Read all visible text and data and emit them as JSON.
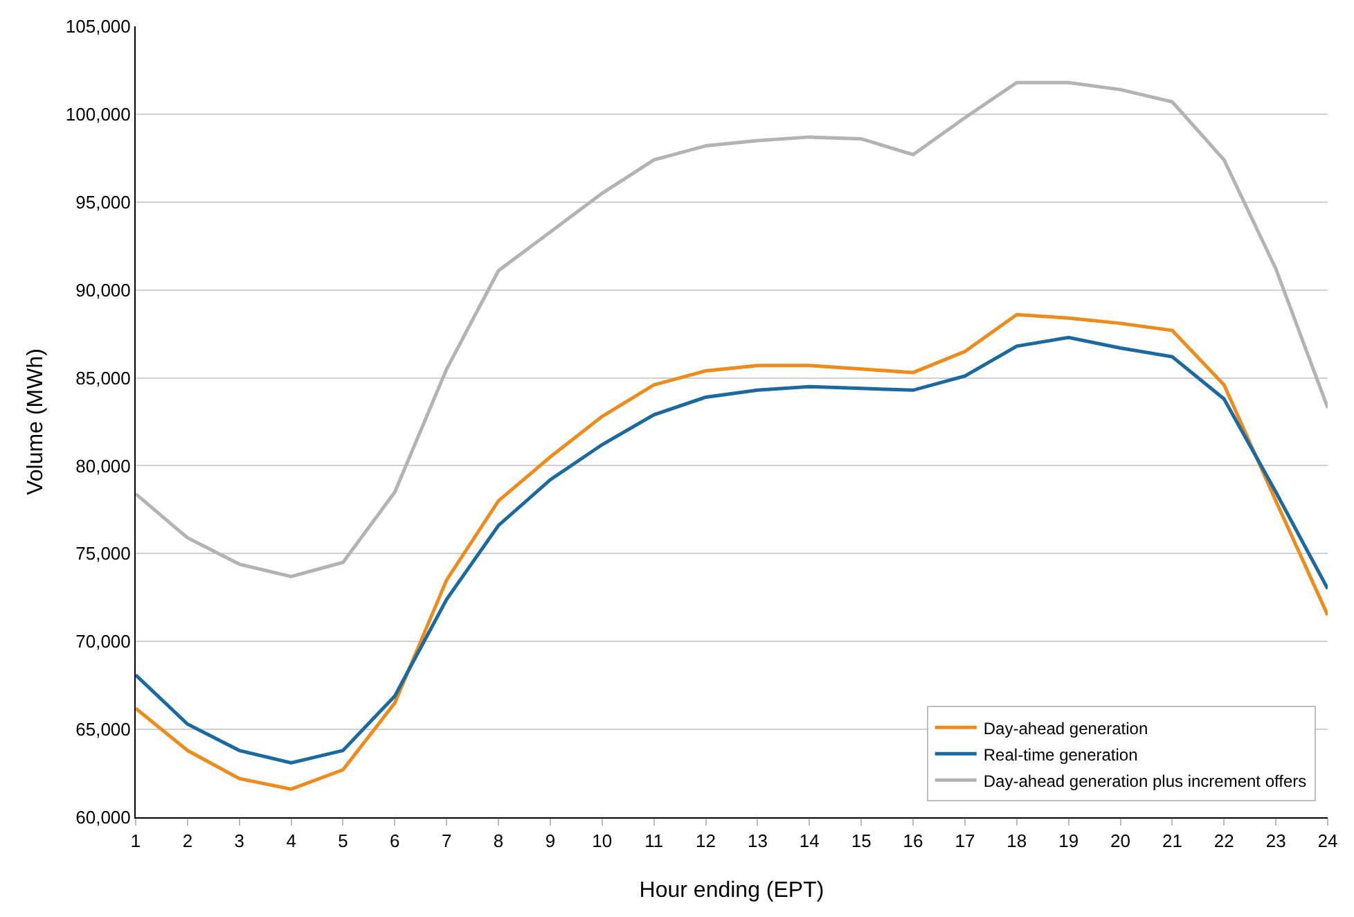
{
  "chart_data": {
    "type": "line",
    "xlabel": "Hour ending (EPT)",
    "ylabel": "Volume (MWh)",
    "x": [
      1,
      2,
      3,
      4,
      5,
      6,
      7,
      8,
      9,
      10,
      11,
      12,
      13,
      14,
      15,
      16,
      17,
      18,
      19,
      20,
      21,
      22,
      23,
      24
    ],
    "series": [
      {
        "name": "Day-ahead generation",
        "color": "#ed8b1c",
        "values": [
          66200,
          63800,
          62200,
          61600,
          62700,
          66500,
          73500,
          78000,
          80500,
          82800,
          84600,
          85400,
          85700,
          85700,
          85500,
          85300,
          86500,
          88600,
          88400,
          88100,
          87700,
          84600,
          78000,
          71500
        ]
      },
      {
        "name": "Real-time generation",
        "color": "#1a6aa0",
        "values": [
          68100,
          65300,
          63800,
          63100,
          63800,
          66900,
          72400,
          76600,
          79200,
          81200,
          82900,
          83900,
          84300,
          84500,
          84400,
          84300,
          85100,
          86800,
          87300,
          86700,
          86200,
          83800,
          78500,
          73000
        ]
      },
      {
        "name": "Day-ahead generation plus increment offers",
        "color": "#b3b3b3",
        "values": [
          78400,
          75900,
          74400,
          73700,
          74500,
          78500,
          85500,
          91100,
          93300,
          95500,
          97400,
          98200,
          98500,
          98700,
          98600,
          97700,
          99800,
          101800,
          101800,
          101400,
          100700,
          97400,
          91200,
          83300
        ]
      }
    ],
    "xlim": [
      1,
      24
    ],
    "xticks": [
      1,
      2,
      3,
      4,
      5,
      6,
      7,
      8,
      9,
      10,
      11,
      12,
      13,
      14,
      15,
      16,
      17,
      18,
      19,
      20,
      21,
      22,
      23,
      24
    ],
    "ylim": [
      60000,
      105000
    ],
    "yticks": [
      {
        "value": 60000,
        "label": "60,000"
      },
      {
        "value": 65000,
        "label": "65,000"
      },
      {
        "value": 70000,
        "label": "70,000"
      },
      {
        "value": 75000,
        "label": "75,000"
      },
      {
        "value": 80000,
        "label": "80,000"
      },
      {
        "value": 85000,
        "label": "85,000"
      },
      {
        "value": 90000,
        "label": "90,000"
      },
      {
        "value": 95000,
        "label": "95,000"
      },
      {
        "value": 100000,
        "label": "100,000"
      },
      {
        "value": 105000,
        "label": "105,000"
      }
    ],
    "grid": "y",
    "legend": "bottom right",
    "marker": "none",
    "line_style": "solid"
  }
}
